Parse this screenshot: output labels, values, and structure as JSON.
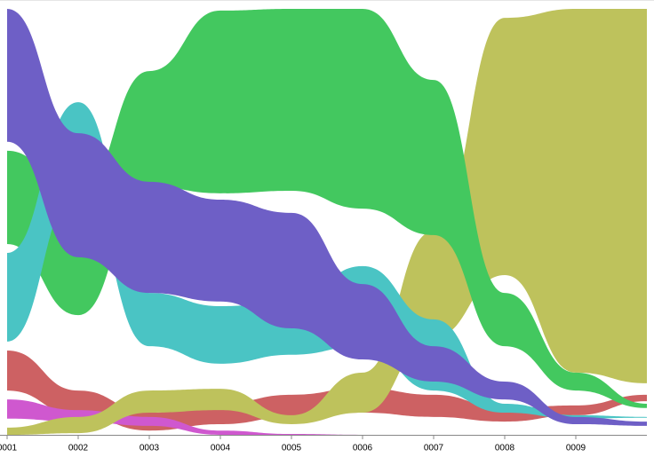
{
  "chart_data": {
    "type": "ribbon",
    "x": [
      1,
      2,
      3,
      4,
      5,
      6,
      7,
      8,
      9,
      10
    ],
    "xlim": [
      1,
      10
    ],
    "xticks": [
      {
        "value": 1,
        "label": "0001"
      },
      {
        "value": 2,
        "label": "0002"
      },
      {
        "value": 3,
        "label": "0003"
      },
      {
        "value": 4,
        "label": "0004"
      },
      {
        "value": 5,
        "label": "0005"
      },
      {
        "value": 6,
        "label": "0006"
      },
      {
        "value": 7,
        "label": "0007"
      },
      {
        "value": 8,
        "label": "0008"
      },
      {
        "value": 9,
        "label": "0009"
      }
    ],
    "ylim": [
      0,
      100
    ],
    "series": [
      {
        "color": "#cd6163",
        "high": [
          19.8,
          10.4,
          5.2,
          7.3,
          9.4,
          11,
          9.4,
          6.3,
          6.9,
          9.4
        ],
        "low": [
          10.4,
          4.6,
          1,
          2.5,
          4.2,
          5.2,
          4.2,
          3.1,
          4.6,
          7.9
        ]
      },
      {
        "color": "#cf58cf",
        "high": [
          8.3,
          5.8,
          4.2,
          1,
          0.2,
          0,
          0,
          0,
          0,
          0
        ],
        "low": [
          3.8,
          3.1,
          2.1,
          0,
          0,
          0,
          0,
          0,
          0,
          0
        ]
      },
      {
        "color": "#bec25c",
        "high": [
          1.7,
          4.2,
          10.4,
          10.8,
          4.6,
          14.6,
          47.9,
          97.9,
          100,
          100
        ],
        "low": [
          0,
          0.4,
          5.2,
          5.8,
          2.5,
          5.2,
          22.9,
          37.5,
          14.6,
          12.1
        ]
      },
      {
        "color": "#43c85f",
        "high": [
          66.7,
          56.3,
          85.4,
          99.6,
          100,
          100,
          83.3,
          33.3,
          14.6,
          7.3
        ],
        "low": [
          44.8,
          28.1,
          58.3,
          56.7,
          57.3,
          53.1,
          46.9,
          20.8,
          10.4,
          6.3
        ]
      },
      {
        "color": "#4ac4c4",
        "high": [
          42.7,
          78.1,
          33.3,
          30.2,
          31.3,
          39.6,
          27.1,
          7.3,
          4.6,
          4.2
        ],
        "low": [
          21.9,
          57.3,
          20.8,
          16.7,
          18.8,
          20.8,
          10.4,
          5.2,
          3.8,
          4
        ]
      },
      {
        "color": "#6e5fc6",
        "high": [
          100,
          70.8,
          59.4,
          55.2,
          52.1,
          35.4,
          20.8,
          12.5,
          4.2,
          3.1
        ],
        "low": [
          68.8,
          41.7,
          33.3,
          31.3,
          25,
          17.7,
          12.5,
          8.3,
          2.5,
          2.1
        ]
      }
    ]
  }
}
